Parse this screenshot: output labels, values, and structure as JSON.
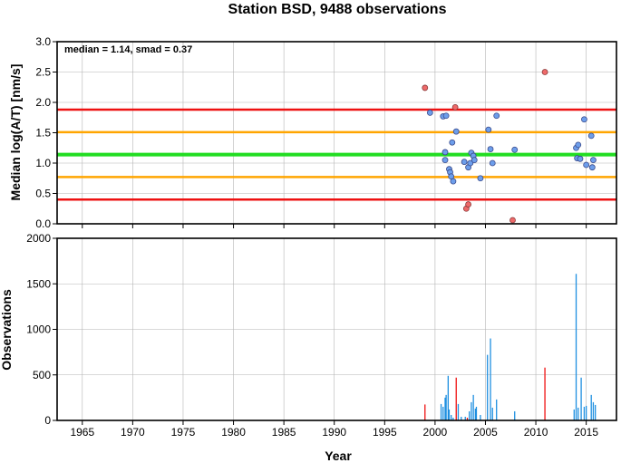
{
  "chart_data": {
    "title": "Station BSD, 9488 observations",
    "annotation": "median = 1.14, smad = 0.37",
    "xlabel": "Year",
    "xlim": [
      1962.5,
      2018
    ],
    "xticks": [
      1965,
      1970,
      1975,
      1980,
      1985,
      1990,
      1995,
      2000,
      2005,
      2010,
      2015
    ],
    "colors": {
      "median_line": "#22dd22",
      "one_smad_line": "#ffa500",
      "two_smad_line": "#ee1111",
      "point_fill": "#6d9eeb",
      "outlier_fill": "#ee6a6a",
      "bar_normal": "#1e8fe0",
      "bar_outlier": "#ee1111"
    },
    "panels": [
      {
        "type": "scatter",
        "ylabel": "Median log(A/T) [nm/s]",
        "ylim": [
          0,
          3.0
        ],
        "yticks": [
          "0.0",
          "0.5",
          "1.0",
          "1.5",
          "2.0",
          "2.5",
          "3.0"
        ],
        "hlines": [
          {
            "y": 1.14,
            "role": "median_line"
          },
          {
            "y": 1.51,
            "role": "one_smad_line"
          },
          {
            "y": 0.77,
            "role": "one_smad_line"
          },
          {
            "y": 1.88,
            "role": "two_smad_line"
          },
          {
            "y": 0.4,
            "role": "two_smad_line"
          }
        ],
        "points": [
          {
            "x": 1999.5,
            "y": 1.83
          },
          {
            "x": 2000.8,
            "y": 1.77
          },
          {
            "x": 2001.1,
            "y": 1.78
          },
          {
            "x": 2001.0,
            "y": 1.05
          },
          {
            "x": 2001.0,
            "y": 1.18
          },
          {
            "x": 2001.4,
            "y": 0.9
          },
          {
            "x": 2001.5,
            "y": 0.85
          },
          {
            "x": 2001.6,
            "y": 0.78
          },
          {
            "x": 2001.7,
            "y": 1.34
          },
          {
            "x": 2001.8,
            "y": 0.7
          },
          {
            "x": 2002.1,
            "y": 1.52
          },
          {
            "x": 2002.9,
            "y": 1.02
          },
          {
            "x": 2003.3,
            "y": 0.93
          },
          {
            "x": 2003.5,
            "y": 1.0
          },
          {
            "x": 2003.6,
            "y": 1.17
          },
          {
            "x": 2003.8,
            "y": 1.12
          },
          {
            "x": 2003.9,
            "y": 1.05
          },
          {
            "x": 2004.5,
            "y": 0.75
          },
          {
            "x": 2005.3,
            "y": 1.55
          },
          {
            "x": 2005.5,
            "y": 1.23
          },
          {
            "x": 2005.7,
            "y": 1.0
          },
          {
            "x": 2006.1,
            "y": 1.78
          },
          {
            "x": 2007.9,
            "y": 1.22
          },
          {
            "x": 2014.0,
            "y": 1.25
          },
          {
            "x": 2014.2,
            "y": 1.3
          },
          {
            "x": 2014.1,
            "y": 1.08
          },
          {
            "x": 2014.4,
            "y": 1.07
          },
          {
            "x": 2014.8,
            "y": 1.72
          },
          {
            "x": 2015.0,
            "y": 0.97
          },
          {
            "x": 2015.5,
            "y": 1.45
          },
          {
            "x": 2015.6,
            "y": 0.93
          },
          {
            "x": 2015.7,
            "y": 1.05
          }
        ],
        "outliers": [
          {
            "x": 1999.0,
            "y": 2.24
          },
          {
            "x": 2002.0,
            "y": 1.92
          },
          {
            "x": 2003.1,
            "y": 0.25
          },
          {
            "x": 2003.3,
            "y": 0.32
          },
          {
            "x": 2007.7,
            "y": 0.06
          },
          {
            "x": 2010.9,
            "y": 2.5
          }
        ]
      },
      {
        "type": "bar",
        "ylabel": "Observations",
        "ylim": [
          0,
          2000
        ],
        "yticks": [
          "0",
          "500",
          "1000",
          "1500",
          "2000"
        ],
        "bars": [
          {
            "x": 1999.0,
            "y": 175,
            "outlier": true
          },
          {
            "x": 2000.6,
            "y": 180
          },
          {
            "x": 2000.8,
            "y": 150
          },
          {
            "x": 2001.0,
            "y": 250
          },
          {
            "x": 2001.1,
            "y": 280
          },
          {
            "x": 2001.3,
            "y": 490
          },
          {
            "x": 2001.4,
            "y": 120
          },
          {
            "x": 2001.6,
            "y": 60
          },
          {
            "x": 2001.8,
            "y": 30
          },
          {
            "x": 2002.1,
            "y": 470,
            "outlier": true
          },
          {
            "x": 2002.3,
            "y": 180
          },
          {
            "x": 2002.6,
            "y": 40
          },
          {
            "x": 2003.0,
            "y": 40
          },
          {
            "x": 2003.2,
            "y": 30,
            "outlier": true
          },
          {
            "x": 2003.4,
            "y": 100
          },
          {
            "x": 2003.6,
            "y": 200
          },
          {
            "x": 2003.8,
            "y": 280
          },
          {
            "x": 2004.0,
            "y": 130
          },
          {
            "x": 2004.1,
            "y": 150
          },
          {
            "x": 2004.5,
            "y": 60
          },
          {
            "x": 2005.2,
            "y": 720
          },
          {
            "x": 2005.5,
            "y": 900
          },
          {
            "x": 2005.7,
            "y": 140
          },
          {
            "x": 2006.1,
            "y": 230
          },
          {
            "x": 2007.9,
            "y": 100
          },
          {
            "x": 2010.9,
            "y": 580,
            "outlier": true
          },
          {
            "x": 2013.8,
            "y": 120
          },
          {
            "x": 2014.0,
            "y": 1610
          },
          {
            "x": 2014.2,
            "y": 140
          },
          {
            "x": 2014.5,
            "y": 470
          },
          {
            "x": 2014.8,
            "y": 150
          },
          {
            "x": 2015.0,
            "y": 160
          },
          {
            "x": 2015.5,
            "y": 280
          },
          {
            "x": 2015.7,
            "y": 200
          },
          {
            "x": 2015.9,
            "y": 170
          }
        ]
      }
    ]
  }
}
